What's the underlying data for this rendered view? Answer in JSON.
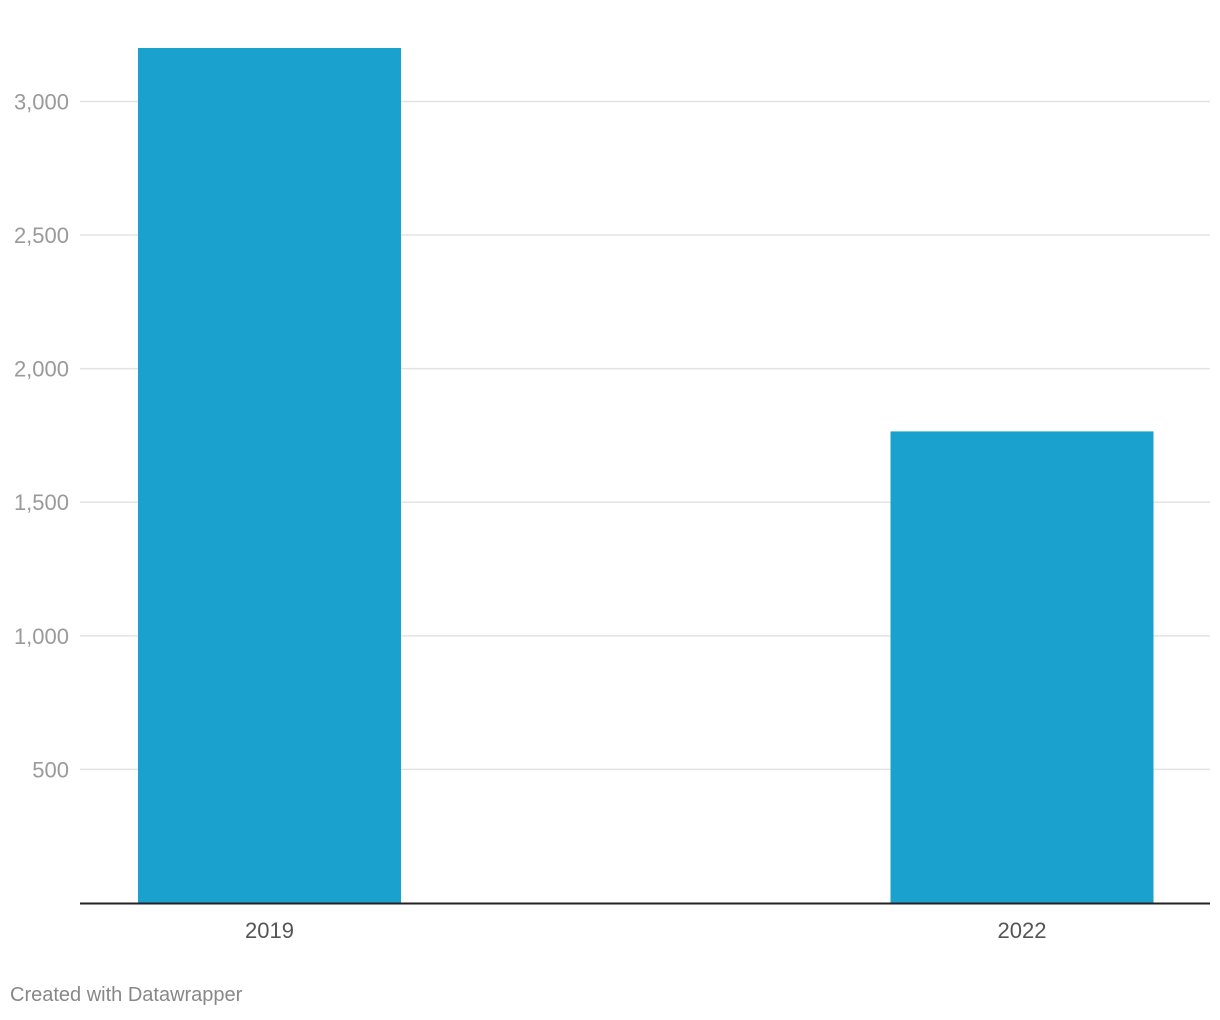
{
  "chart_data": {
    "type": "bar",
    "categories": [
      "2019",
      "2022"
    ],
    "values": [
      3200,
      1765
    ],
    "title": "",
    "xlabel": "",
    "ylabel": "",
    "ylim": [
      0,
      3200
    ],
    "yticks": [
      500,
      1000,
      1500,
      2000,
      2500,
      3000
    ],
    "ytick_labels": [
      "500",
      "1,000",
      "1,500",
      "2,000",
      "2,500",
      "3,000"
    ],
    "grid": true,
    "legend": "none",
    "bar_color": "#1aa1cd",
    "gridline_color": "#e3e3e3",
    "baseline_color": "#222222"
  },
  "footer": {
    "credit": "Created with Datawrapper"
  }
}
